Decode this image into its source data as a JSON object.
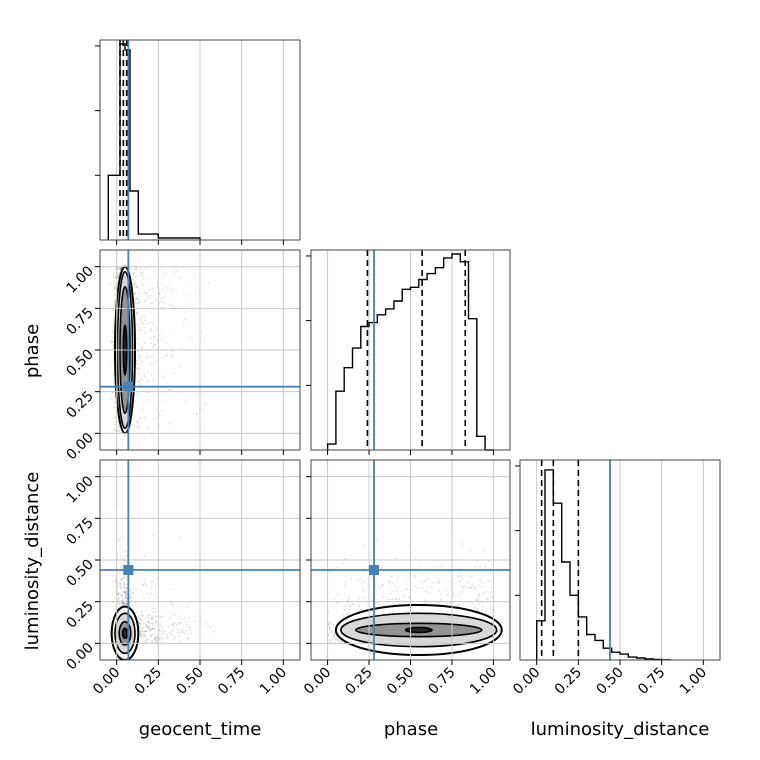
{
  "chart_data": {
    "type": "corner",
    "parameters": [
      "geocent_time",
      "phase",
      "luminosity_distance"
    ],
    "tick_labels": [
      "0.00",
      "0.25",
      "0.50",
      "0.75",
      "1.00"
    ],
    "tick_values": [
      0.0,
      0.25,
      0.5,
      0.75,
      1.0
    ],
    "axis_range": [
      -0.1,
      1.1
    ],
    "grid": true,
    "truth_color": "#4682b4",
    "truths": {
      "geocent_time": 0.07,
      "phase": 0.28,
      "luminosity_distance": 0.44
    },
    "quantiles": {
      "geocent_time": [
        0.02,
        0.04,
        0.06
      ],
      "phase": [
        0.24,
        0.57,
        0.83
      ],
      "luminosity_distance": [
        0.03,
        0.1,
        0.25
      ]
    },
    "histograms": {
      "geocent_time": {
        "bin_edges": [
          -0.05,
          0.02,
          0.05,
          0.08,
          0.13,
          0.25,
          0.5
        ],
        "counts": [
          0.33,
          1.0,
          0.97,
          0.25,
          0.03,
          0.01
        ]
      },
      "phase": {
        "bin_edges": [
          0.0,
          0.05,
          0.1,
          0.15,
          0.2,
          0.25,
          0.3,
          0.35,
          0.4,
          0.45,
          0.5,
          0.55,
          0.6,
          0.65,
          0.7,
          0.75,
          0.8,
          0.85,
          0.9,
          0.95,
          1.0
        ],
        "counts": [
          0.03,
          0.3,
          0.42,
          0.52,
          0.63,
          0.65,
          0.69,
          0.72,
          0.76,
          0.82,
          0.83,
          0.87,
          0.9,
          0.93,
          0.98,
          1.0,
          0.96,
          0.67,
          0.07,
          0.0
        ]
      },
      "luminosity_distance": {
        "bin_edges": [
          0.0,
          0.05,
          0.1,
          0.15,
          0.2,
          0.25,
          0.3,
          0.35,
          0.4,
          0.45,
          0.5,
          0.55,
          0.6,
          0.65,
          0.7,
          0.75,
          0.8
        ],
        "counts": [
          0.2,
          0.97,
          0.8,
          0.5,
          0.33,
          0.22,
          0.13,
          0.1,
          0.06,
          0.04,
          0.03,
          0.015,
          0.01,
          0.005,
          0.003,
          0.001
        ]
      }
    },
    "contours": {
      "phase_vs_geocent_time": {
        "center": [
          0.05,
          0.5
        ],
        "levels": [
          [
            0.06,
            0.5
          ],
          [
            0.045,
            0.47
          ],
          [
            0.03,
            0.38
          ],
          [
            0.01,
            0.15
          ]
        ]
      },
      "luminosity_distance_vs_geocent_time": {
        "center": [
          0.05,
          0.06
        ],
        "levels": [
          [
            0.08,
            0.16
          ],
          [
            0.06,
            0.12
          ],
          [
            0.035,
            0.07
          ],
          [
            0.015,
            0.03
          ]
        ]
      },
      "luminosity_distance_vs_phase": {
        "center": [
          0.55,
          0.08
        ],
        "levels": [
          [
            0.5,
            0.15
          ],
          [
            0.47,
            0.1
          ],
          [
            0.38,
            0.04
          ],
          [
            0.08,
            0.015
          ]
        ]
      }
    }
  }
}
